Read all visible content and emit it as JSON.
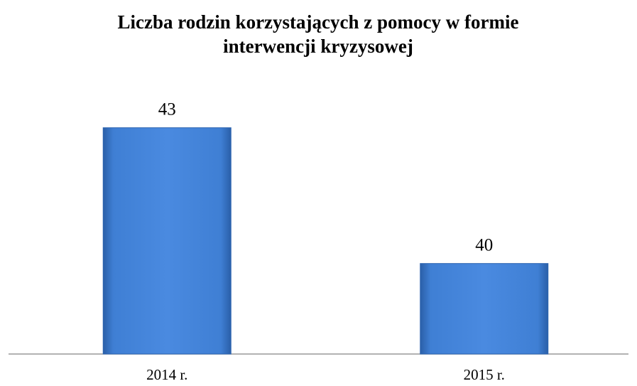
{
  "chart_data": {
    "type": "bar",
    "title": "Liczba rodzin korzystających z pomocy w formie interwencji kryzysowej",
    "categories": [
      "2014 r.",
      "2015 r."
    ],
    "values": [
      43,
      40
    ],
    "color": "#3f7fd4",
    "ylim": [
      38,
      44
    ]
  }
}
